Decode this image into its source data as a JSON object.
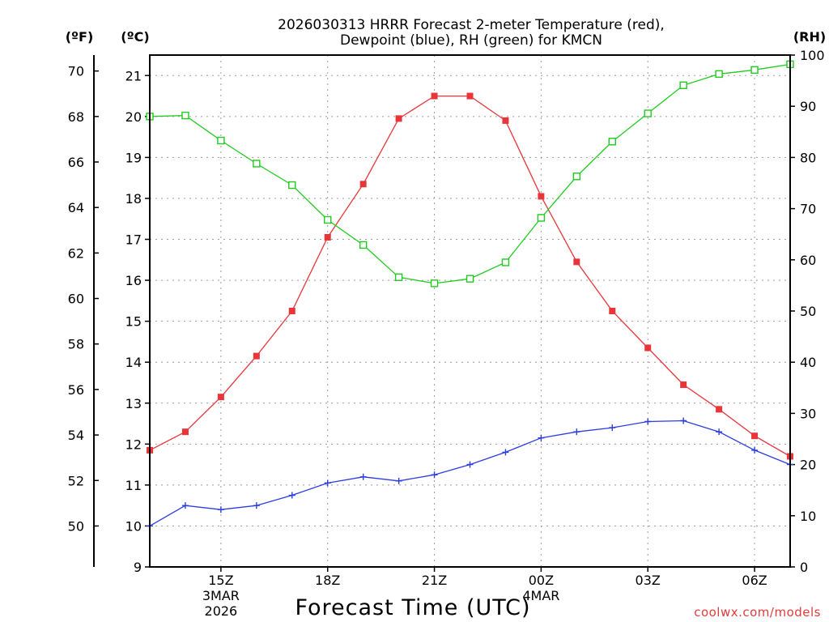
{
  "chart_data": {
    "type": "line",
    "title_line1": "2026030313 HRRR Forecast 2-meter Temperature (red),",
    "title_line2": "Dewpoint (blue), RH (green) for KMCN",
    "xlabel": "Forecast Time (UTC)",
    "units": {
      "fahrenheit": "(ºF)",
      "celsius": "(ºC)",
      "rh": "(RH)"
    },
    "x_hours": [
      0,
      1,
      2,
      3,
      4,
      5,
      6,
      7,
      8,
      9,
      10,
      11,
      12,
      13,
      14,
      15,
      16,
      17,
      18
    ],
    "xlim": [
      0,
      18
    ],
    "x_ticks": [
      {
        "hour": 2,
        "label": "15Z",
        "sub1": "3MAR",
        "sub2": "2026"
      },
      {
        "hour": 5,
        "label": "18Z",
        "sub1": "",
        "sub2": ""
      },
      {
        "hour": 8,
        "label": "21Z",
        "sub1": "",
        "sub2": ""
      },
      {
        "hour": 11,
        "label": "00Z",
        "sub1": "4MAR",
        "sub2": ""
      },
      {
        "hour": 14,
        "label": "03Z",
        "sub1": "",
        "sub2": ""
      },
      {
        "hour": 17,
        "label": "06Z",
        "sub1": "",
        "sub2": ""
      }
    ],
    "celsius_axis": {
      "min": 9,
      "max": 21.5,
      "ticks": [
        9,
        10,
        11,
        12,
        13,
        14,
        15,
        16,
        17,
        18,
        19,
        20,
        21
      ]
    },
    "fahrenheit_ticks": [
      50,
      52,
      54,
      56,
      58,
      60,
      62,
      64,
      66,
      68,
      70
    ],
    "rh_axis": {
      "min": 0,
      "max": 100,
      "ticks": [
        0,
        10,
        20,
        30,
        40,
        50,
        60,
        70,
        80,
        90,
        100
      ]
    },
    "series": [
      {
        "name": "Temperature",
        "axis": "celsius",
        "color": "#e8353a",
        "marker": "filled-square",
        "values": [
          11.85,
          12.3,
          13.15,
          14.15,
          15.25,
          17.05,
          18.35,
          19.95,
          20.5,
          20.5,
          19.9,
          18.05,
          16.45,
          15.25,
          14.35,
          13.45,
          12.85,
          12.2,
          11.7
        ]
      },
      {
        "name": "Dewpoint",
        "axis": "celsius",
        "color": "#2b3de0",
        "marker": "plus",
        "values": [
          10.0,
          10.5,
          10.4,
          10.5,
          10.75,
          11.05,
          11.2,
          11.1,
          11.25,
          11.5,
          11.8,
          12.15,
          12.3,
          12.4,
          12.55,
          12.57,
          12.3,
          11.85,
          11.5
        ]
      },
      {
        "name": "RH",
        "axis": "rh",
        "color": "#1ecb1e",
        "marker": "open-square",
        "values": [
          88,
          88.2,
          83.3,
          78.8,
          74.6,
          67.8,
          62.9,
          56.6,
          55.4,
          56.3,
          59.5,
          68.2,
          76.3,
          83.1,
          88.6,
          94.1,
          96.3,
          97.1,
          98.2
        ]
      }
    ],
    "grid": true
  },
  "watermark": "coolwx.com/models"
}
